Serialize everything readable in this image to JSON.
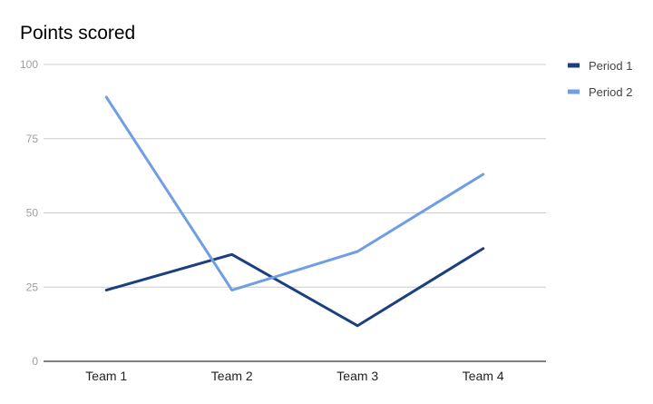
{
  "chart_data": {
    "type": "line",
    "title": "Points scored",
    "xlabel": "",
    "ylabel": "",
    "categories": [
      "Team 1",
      "Team 2",
      "Team 3",
      "Team 4"
    ],
    "ylim": [
      0,
      100
    ],
    "yticks": [
      "0",
      "25",
      "50",
      "75",
      "100"
    ],
    "grid": true,
    "legend_position": "right",
    "series": [
      {
        "name": "Period 1",
        "values": [
          24,
          36,
          12,
          38
        ],
        "color": "#1c3f7f"
      },
      {
        "name": "Period 2",
        "values": [
          89,
          24,
          37,
          63
        ],
        "color": "#6f9ee5"
      }
    ]
  }
}
